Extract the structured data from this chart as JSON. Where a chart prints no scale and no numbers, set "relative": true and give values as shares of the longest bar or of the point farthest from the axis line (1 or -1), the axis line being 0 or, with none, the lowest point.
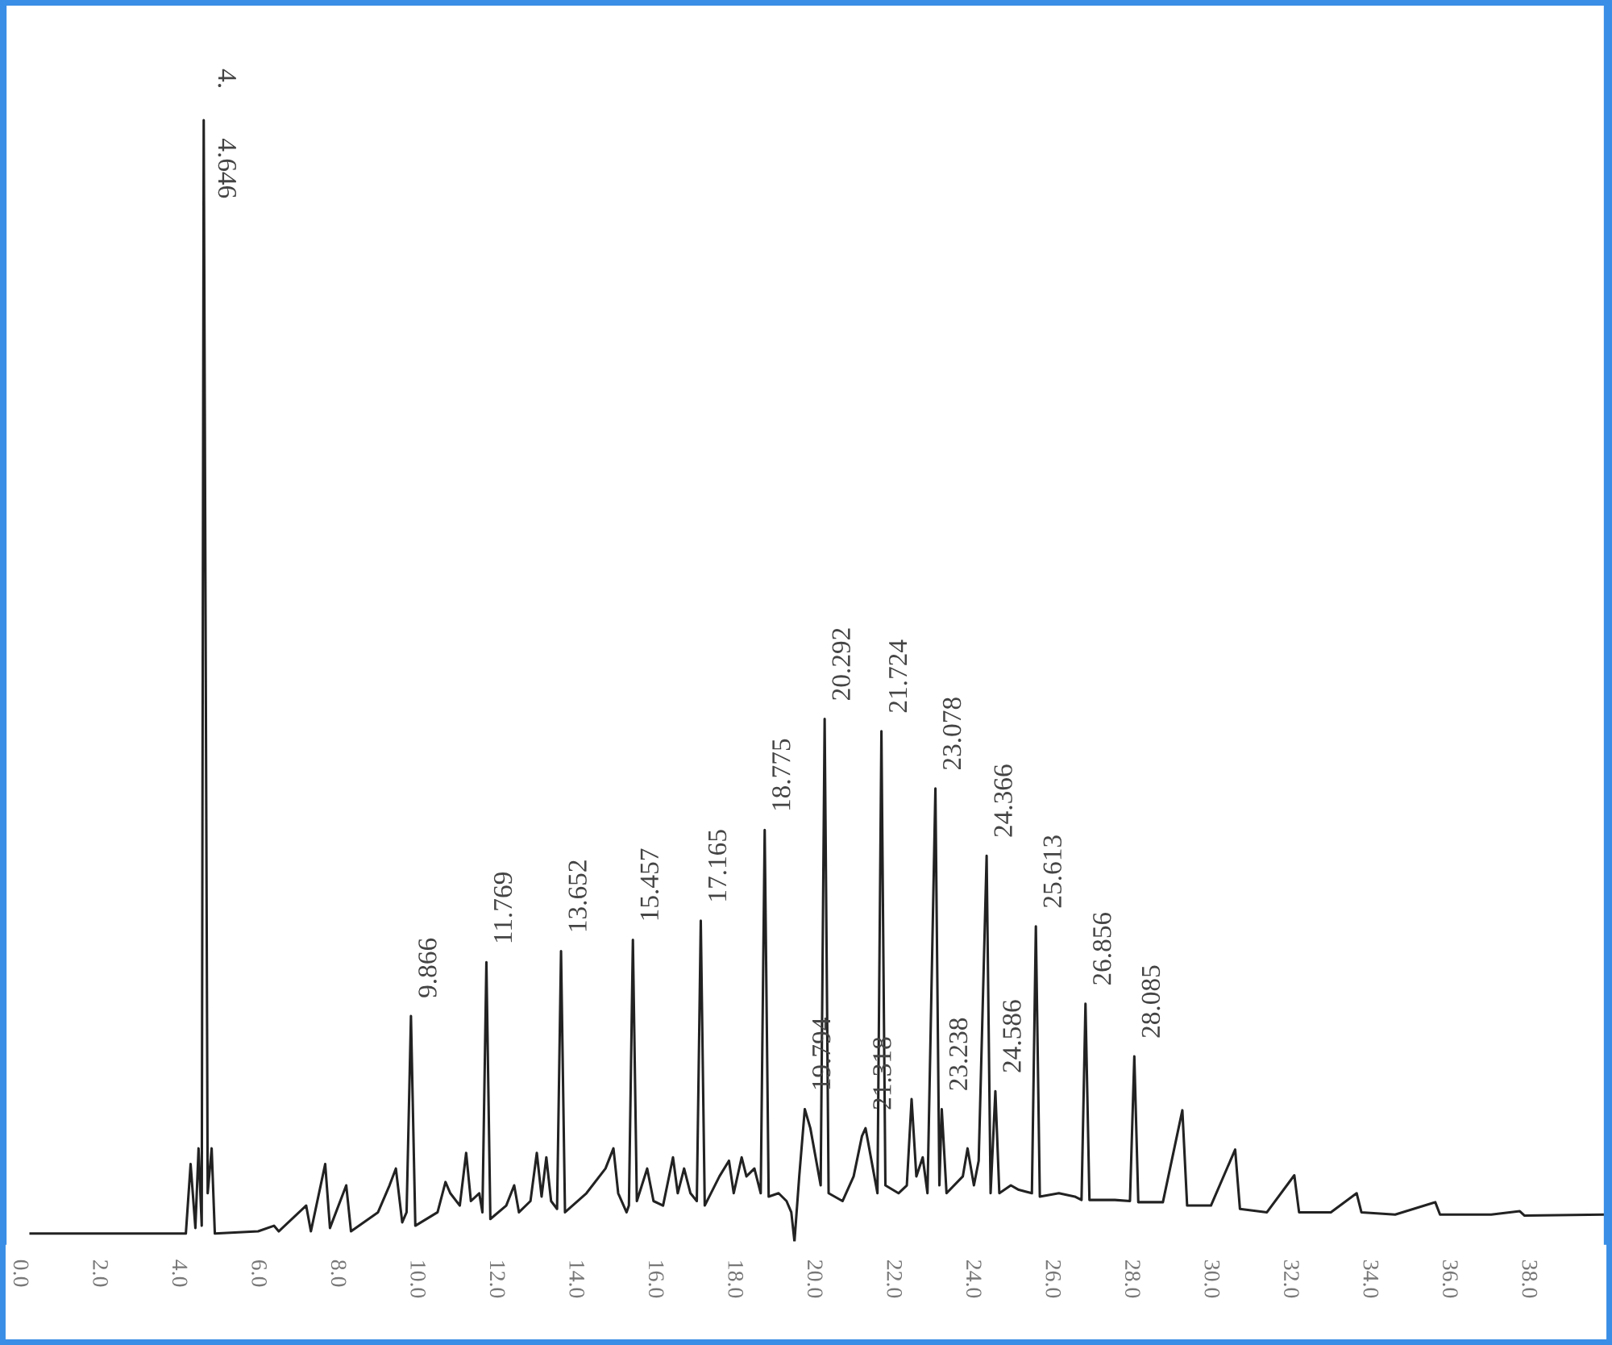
{
  "chart_data": {
    "type": "line",
    "relative": true,
    "tick_labels": "x",
    "grid": false,
    "legend": false,
    "marker": "none",
    "line_style": "solid",
    "xlim": [
      -0.4,
      40.0
    ],
    "xticks": [
      {
        "value": 0,
        "label": "0.0"
      },
      {
        "value": 2,
        "label": "2.0"
      },
      {
        "value": 4,
        "label": "4.0"
      },
      {
        "value": 6,
        "label": "6.0"
      },
      {
        "value": 8,
        "label": "8.0"
      },
      {
        "value": 10,
        "label": "10.0"
      },
      {
        "value": 12,
        "label": "12.0"
      },
      {
        "value": 14,
        "label": "14.0"
      },
      {
        "value": 16,
        "label": "16.0"
      },
      {
        "value": 18,
        "label": "18.0"
      },
      {
        "value": 20,
        "label": "20.0"
      },
      {
        "value": 22,
        "label": "22.0"
      },
      {
        "value": 24,
        "label": "24.0"
      },
      {
        "value": 26,
        "label": "26.0"
      },
      {
        "value": 28,
        "label": "28.0"
      },
      {
        "value": 30,
        "label": "30.0"
      },
      {
        "value": 32,
        "label": "32.0"
      },
      {
        "value": 34,
        "label": "34.0"
      },
      {
        "value": 36,
        "label": "36.0"
      },
      {
        "value": 38,
        "label": "38.0"
      }
    ],
    "series": [
      {
        "color": "#222222",
        "x": [
          0.29,
          4.2,
          4.32,
          4.44,
          4.52,
          4.6,
          4.65,
          4.75,
          4.85,
          4.93,
          6.02,
          6.42,
          6.54,
          7.23,
          7.35,
          7.71,
          7.83,
          8.24,
          8.36,
          9.04,
          9.33,
          9.49,
          9.65,
          9.76,
          9.87,
          9.98,
          10.54,
          10.74,
          10.86,
          11.1,
          11.26,
          11.38,
          11.59,
          11.67,
          11.77,
          11.87,
          12.27,
          12.47,
          12.59,
          12.88,
          13.04,
          13.16,
          13.28,
          13.4,
          13.55,
          13.65,
          13.75,
          14.29,
          14.77,
          14.97,
          15.09,
          15.3,
          15.36,
          15.46,
          15.56,
          15.82,
          15.98,
          16.22,
          16.47,
          16.59,
          16.75,
          16.91,
          17.07,
          17.17,
          17.27,
          17.64,
          17.88,
          18.0,
          18.2,
          18.32,
          18.52,
          18.68,
          18.78,
          18.88,
          19.13,
          19.33,
          19.45,
          19.53,
          19.65,
          19.79,
          19.93,
          20.19,
          20.29,
          20.39,
          20.74,
          21.02,
          21.23,
          21.32,
          21.62,
          21.72,
          21.82,
          22.15,
          22.36,
          22.48,
          22.6,
          22.76,
          22.88,
          23.08,
          23.18,
          23.24,
          23.36,
          23.77,
          23.89,
          24.05,
          24.17,
          24.37,
          24.47,
          24.59,
          24.69,
          24.98,
          25.18,
          25.51,
          25.61,
          25.71,
          26.19,
          26.59,
          26.76,
          26.86,
          26.96,
          27.6,
          27.98,
          28.09,
          28.19,
          28.81,
          29.3,
          29.42,
          30.02,
          30.63,
          30.75,
          31.43,
          32.12,
          32.24,
          33.04,
          33.69,
          33.81,
          34.66,
          35.67,
          35.79,
          37.08,
          37.8,
          37.92,
          39.9
        ],
        "values": [
          0.007,
          0.007,
          0.069,
          0.012,
          0.083,
          0.014,
          1.0,
          0.043,
          0.083,
          0.007,
          0.009,
          0.014,
          0.009,
          0.032,
          0.009,
          0.069,
          0.012,
          0.05,
          0.009,
          0.026,
          0.05,
          0.065,
          0.017,
          0.026,
          0.201,
          0.014,
          0.026,
          0.053,
          0.043,
          0.032,
          0.079,
          0.036,
          0.043,
          0.026,
          0.249,
          0.02,
          0.032,
          0.05,
          0.026,
          0.036,
          0.079,
          0.04,
          0.075,
          0.036,
          0.029,
          0.259,
          0.026,
          0.043,
          0.065,
          0.083,
          0.043,
          0.026,
          0.032,
          0.269,
          0.036,
          0.065,
          0.036,
          0.032,
          0.075,
          0.043,
          0.065,
          0.043,
          0.036,
          0.286,
          0.032,
          0.058,
          0.072,
          0.043,
          0.075,
          0.058,
          0.065,
          0.043,
          0.367,
          0.04,
          0.043,
          0.036,
          0.026,
          0.0,
          0.058,
          0.118,
          0.101,
          0.05,
          0.466,
          0.043,
          0.036,
          0.058,
          0.094,
          0.101,
          0.043,
          0.455,
          0.05,
          0.043,
          0.05,
          0.127,
          0.058,
          0.075,
          0.043,
          0.404,
          0.05,
          0.118,
          0.043,
          0.058,
          0.083,
          0.05,
          0.072,
          0.344,
          0.043,
          0.134,
          0.043,
          0.05,
          0.046,
          0.043,
          0.281,
          0.04,
          0.043,
          0.04,
          0.037,
          0.212,
          0.037,
          0.037,
          0.036,
          0.165,
          0.035,
          0.035,
          0.117,
          0.032,
          0.032,
          0.082,
          0.029,
          0.026,
          0.059,
          0.026,
          0.026,
          0.043,
          0.026,
          0.024,
          0.035,
          0.024,
          0.024,
          0.027,
          0.023,
          0.024
        ]
      }
    ],
    "annotations": [
      {
        "text": "4.",
        "x": 4.65,
        "y": 1.0
      },
      {
        "text": "4.646",
        "x": 4.65,
        "y": 1.0
      },
      {
        "text": "9.866",
        "x": 9.87,
        "y": 0.201
      },
      {
        "text": "11.769",
        "x": 11.77,
        "y": 0.249
      },
      {
        "text": "13.652",
        "x": 13.65,
        "y": 0.259
      },
      {
        "text": "15.457",
        "x": 15.46,
        "y": 0.269
      },
      {
        "text": "17.165",
        "x": 17.17,
        "y": 0.286
      },
      {
        "text": "18.775",
        "x": 18.78,
        "y": 0.367
      },
      {
        "text": "19.794",
        "x": 19.79,
        "y": 0.118
      },
      {
        "text": "20.292",
        "x": 20.29,
        "y": 0.466
      },
      {
        "text": "21.318",
        "x": 21.32,
        "y": 0.101
      },
      {
        "text": "21.724",
        "x": 21.72,
        "y": 0.455
      },
      {
        "text": "23.078",
        "x": 23.08,
        "y": 0.404
      },
      {
        "text": "23.238",
        "x": 23.24,
        "y": 0.118
      },
      {
        "text": "24.366",
        "x": 24.37,
        "y": 0.344
      },
      {
        "text": "24.586",
        "x": 24.59,
        "y": 0.134
      },
      {
        "text": "25.613",
        "x": 25.61,
        "y": 0.281
      },
      {
        "text": "26.856",
        "x": 26.86,
        "y": 0.212
      },
      {
        "text": "28.085",
        "x": 28.09,
        "y": 0.165
      }
    ]
  }
}
